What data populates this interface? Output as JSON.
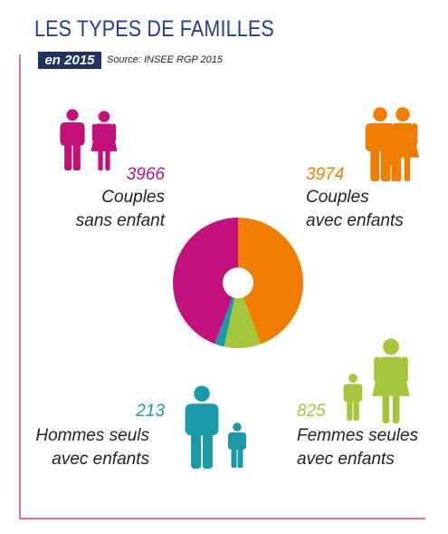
{
  "chart_data": {
    "type": "donut",
    "title": "LES TYPES DE FAMILLES",
    "subtitle": "en 2015",
    "source": "Source: INSEE RGP 2015",
    "categories": [
      "Couples\navec enfants",
      "Femmes seules\navec enfants",
      "Hommes seuls\navec enfants",
      "Couples\nsans enfant"
    ],
    "values": [
      3974,
      825,
      213,
      3966
    ],
    "colors": [
      "#ef7d00",
      "#a5c63b",
      "#1a9aa6",
      "#c2117a"
    ]
  }
}
